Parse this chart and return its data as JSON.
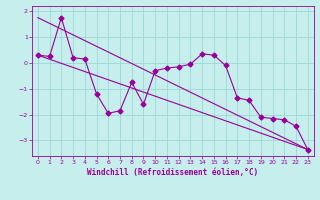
{
  "title": "",
  "xlabel": "Windchill (Refroidissement éolien,°C)",
  "ylabel": "",
  "background_color": "#c6eeec",
  "grid_color": "#9dd8d6",
  "line_color": "#990099",
  "xlim": [
    -0.5,
    23.5
  ],
  "ylim": [
    -3.6,
    2.2
  ],
  "xticks": [
    0,
    1,
    2,
    3,
    4,
    5,
    6,
    7,
    8,
    9,
    10,
    11,
    12,
    13,
    14,
    15,
    16,
    17,
    18,
    19,
    20,
    21,
    22,
    23
  ],
  "yticks": [
    -3,
    -2,
    -1,
    0,
    1,
    2
  ],
  "series1_x": [
    0,
    1,
    2,
    3,
    4,
    5,
    6,
    7,
    8,
    9,
    10,
    11,
    12,
    13,
    14,
    15,
    16,
    17,
    18,
    19,
    20,
    21,
    22,
    23
  ],
  "series1_y": [
    0.3,
    0.25,
    1.75,
    0.2,
    0.15,
    -1.2,
    -1.95,
    -1.85,
    -0.75,
    -1.6,
    -0.3,
    -0.2,
    -0.15,
    -0.05,
    0.35,
    0.3,
    -0.1,
    -1.35,
    -1.45,
    -2.1,
    -2.15,
    -2.2,
    -2.45,
    -3.35
  ],
  "series2_x": [
    0,
    23
  ],
  "series2_y": [
    0.3,
    -3.35
  ],
  "series3_x": [
    0,
    23
  ],
  "series3_y": [
    1.75,
    -3.35
  ],
  "marker": "D",
  "markersize": 2.5,
  "linewidth": 0.8,
  "tick_fontsize": 4.5,
  "xlabel_fontsize": 5.5
}
